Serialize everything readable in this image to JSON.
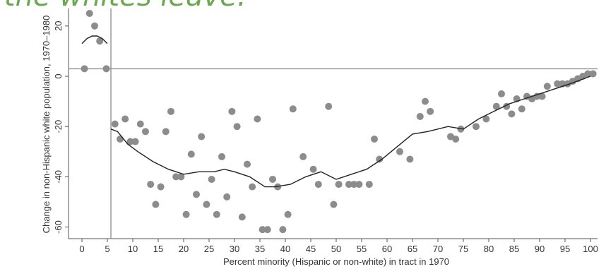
{
  "heading": "the whites leave.",
  "chart_data": {
    "type": "scatter",
    "title": "",
    "xlabel": "Percent minority (Hispanic or non-white) in tract in 1970",
    "ylabel": "Change in non-Hispanic white population, 1970–1980",
    "xlim": [
      0,
      100
    ],
    "ylim": [
      -65,
      25
    ],
    "x_ticks": [
      "0",
      "5",
      "10",
      "15",
      "20",
      "25",
      "30",
      "35",
      "40",
      "45",
      "50",
      "55",
      "60",
      "65",
      "70",
      "75",
      "80",
      "85",
      "90",
      "95",
      "100"
    ],
    "y_ticks": [
      "-60",
      "-40",
      "-20",
      "0",
      "20"
    ],
    "grid": false,
    "legend": "none",
    "reference_lines": {
      "horizontal_y": 3,
      "vertical_x": 5.7
    },
    "colors": {
      "points": "#8c8c8c",
      "curve": "#222222",
      "reference": "#999999",
      "heading": "#6aa84f"
    },
    "series": [
      {
        "type": "scatter",
        "x": [
          0.5,
          1.5,
          2.5,
          3.5,
          4.8,
          6.5,
          7.5,
          8.5,
          9.5,
          10.5,
          11.5,
          12.5,
          13.5,
          14.5,
          15.5,
          16.5,
          17.5,
          18.5,
          19.5,
          20.5,
          21.5,
          22.5,
          23.5,
          24.5,
          25.5,
          26.5,
          27.5,
          28.5,
          29.5,
          30.5,
          31.5,
          32.5,
          33.5,
          34.5,
          35.5,
          36.5,
          37.5,
          38.5,
          39.5,
          40.5,
          41.5,
          43.5,
          45.5,
          46.5,
          48.5,
          49.5,
          50.5,
          52.5,
          53.5,
          54.5,
          56.5,
          57.5,
          58.5,
          62.5,
          64.5,
          66.5,
          67.5,
          68.5,
          72.5,
          73.5,
          74.5,
          77.5,
          79.5,
          81.5,
          82.5,
          83.5,
          84.5,
          85.5,
          86.5,
          87.5,
          88.5,
          89.5,
          90.5,
          91.5,
          93.5,
          94.5,
          95.5,
          96.5,
          97.5,
          98.5,
          99.5,
          100.5
        ],
        "y": [
          3,
          25,
          20,
          14,
          3,
          -19,
          -25,
          -17,
          -26,
          -26,
          -19,
          -22,
          -43,
          -51,
          -44,
          -22,
          -14,
          -40,
          -40,
          -55,
          -31,
          -47,
          -24,
          -51,
          -41,
          -55,
          -32,
          -48,
          -14,
          -20,
          -56,
          -35,
          -44,
          -17,
          -61,
          -61,
          -41,
          -44,
          -61,
          -55,
          -13,
          -32,
          -37,
          -43,
          -12,
          -51,
          -43,
          -43,
          -43,
          -43,
          -43,
          -25,
          -33,
          -30,
          -33,
          -16,
          -10,
          -14,
          -24,
          -25,
          -21,
          -20,
          -17,
          -12,
          -7,
          -12,
          -15,
          -9,
          -13,
          -8,
          -9,
          -8,
          -8,
          -4,
          -3,
          -3,
          -3,
          -2,
          -1,
          0,
          1,
          1
        ]
      },
      {
        "type": "line",
        "name": "",
        "x": [
          0,
          1,
          2,
          3,
          4,
          5
        ],
        "y": [
          13,
          15,
          16,
          16,
          15,
          13
        ]
      },
      {
        "type": "line",
        "name": "",
        "x": [
          5.7,
          7,
          9,
          11,
          14,
          17,
          20,
          23,
          26,
          28,
          30,
          33,
          36,
          38,
          41,
          44,
          47,
          50,
          53,
          56,
          59,
          62,
          65,
          68,
          72,
          75,
          78,
          81,
          84,
          87,
          90,
          93,
          96,
          100
        ],
        "y": [
          -21,
          -22,
          -27,
          -30,
          -34,
          -37,
          -39,
          -38,
          -38,
          -37,
          -38,
          -40,
          -44,
          -44,
          -43,
          -40,
          -38,
          -41,
          -39,
          -37,
          -33,
          -28,
          -23,
          -22,
          -20,
          -21,
          -17,
          -14,
          -11,
          -9,
          -7,
          -5,
          -3,
          0
        ]
      }
    ]
  }
}
